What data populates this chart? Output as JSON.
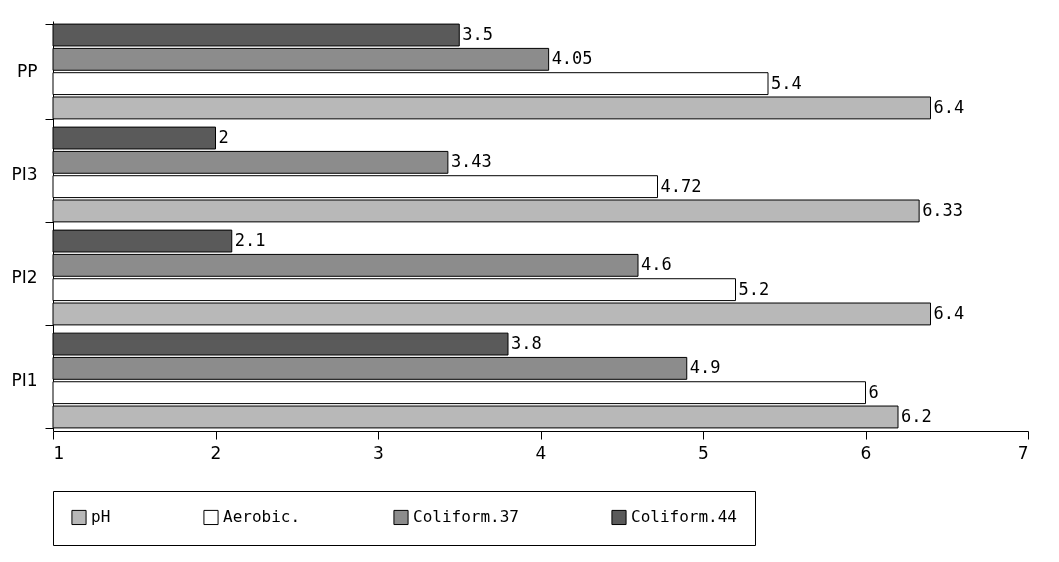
{
  "chart_data": {
    "type": "bar",
    "orientation": "horizontal",
    "categories": [
      "PP",
      "PI3",
      "PI2",
      "PI1"
    ],
    "series": [
      {
        "name": "pH",
        "color": "#b8b8b8",
        "values": [
          6.4,
          6.33,
          6.4,
          6.2
        ]
      },
      {
        "name": "Aerobic.",
        "color": "#ffffff",
        "values": [
          5.4,
          4.72,
          5.2,
          6
        ]
      },
      {
        "name": "Coliform.37",
        "color": "#8c8c8c",
        "values": [
          4.05,
          3.43,
          4.6,
          4.9
        ]
      },
      {
        "name": "Coliform.44",
        "color": "#5a5a5a",
        "values": [
          3.5,
          2,
          2.1,
          3.8
        ]
      }
    ],
    "xlim": [
      1,
      7
    ],
    "xticks": [
      1,
      2,
      3,
      4,
      5,
      6,
      7
    ],
    "data_labels": true,
    "legend": "bottom",
    "grid": false
  }
}
